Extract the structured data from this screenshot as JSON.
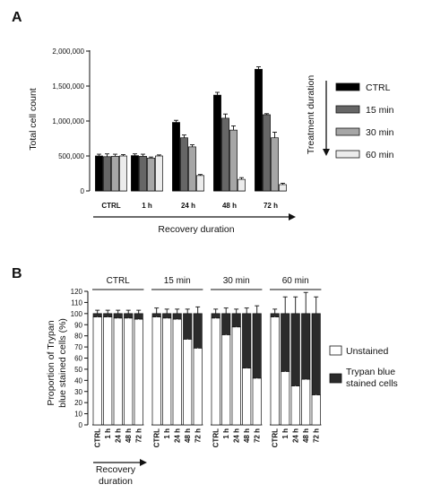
{
  "chart_data": [
    {
      "panel": "A",
      "type": "bar",
      "title": "",
      "ylabel": "Total cell count",
      "xlabel": "Recovery duration",
      "legend_title": "Treatment duration",
      "legend_position": "right",
      "ylim": [
        0,
        2000000
      ],
      "y_ticks": [
        0,
        500000,
        1000000,
        1500000,
        2000000
      ],
      "y_tick_labels": [
        "0",
        "500,000",
        "1,000,000",
        "1,500,000",
        "2,000,000"
      ],
      "categories": [
        "CTRL",
        "1 h",
        "24 h",
        "48 h",
        "72 h"
      ],
      "series": [
        {
          "name": "CTRL",
          "color": "#000000",
          "values": [
            500000,
            505000,
            980000,
            1370000,
            1740000
          ],
          "errors": [
            25000,
            25000,
            30000,
            40000,
            35000
          ]
        },
        {
          "name": "15 min",
          "color": "#666666",
          "values": [
            490000,
            495000,
            760000,
            1040000,
            1090000
          ],
          "errors": [
            40000,
            30000,
            40000,
            60000,
            15000
          ]
        },
        {
          "name": "30 min",
          "color": "#a6a6a6",
          "values": [
            495000,
            470000,
            630000,
            870000,
            760000
          ],
          "errors": [
            30000,
            15000,
            30000,
            60000,
            80000
          ]
        },
        {
          "name": "60 min",
          "color": "#ececec",
          "values": [
            500000,
            500000,
            220000,
            165000,
            90000
          ],
          "errors": [
            20000,
            15000,
            15000,
            25000,
            20000
          ]
        }
      ]
    },
    {
      "panel": "B",
      "type": "bar",
      "stacked": true,
      "title": "",
      "ylabel": "Proportion of Trypan blue stained cells (%)",
      "xlabel": "Recovery duration",
      "legend_position": "right",
      "ylim": [
        0,
        120
      ],
      "y_ticks": [
        0,
        10,
        20,
        30,
        40,
        50,
        60,
        70,
        80,
        90,
        100,
        110,
        120
      ],
      "categories": [
        "CTRL",
        "1 h",
        "24 h",
        "48 h",
        "72 h"
      ],
      "groups": [
        {
          "name": "CTRL",
          "unstained": [
            97,
            97,
            96,
            96,
            95
          ],
          "stained": [
            3,
            3,
            4,
            4,
            5
          ],
          "errors": [
            3,
            3,
            3,
            3,
            3
          ]
        },
        {
          "name": "15 min",
          "unstained": [
            97,
            96,
            95,
            77,
            69
          ],
          "stained": [
            3,
            4,
            5,
            23,
            31
          ],
          "errors": [
            5,
            4,
            4,
            4,
            6
          ]
        },
        {
          "name": "30 min",
          "unstained": [
            96,
            81,
            88,
            51,
            42
          ],
          "stained": [
            4,
            19,
            12,
            49,
            58
          ],
          "errors": [
            4,
            5,
            4,
            5,
            7
          ]
        },
        {
          "name": "60 min",
          "unstained": [
            97,
            48,
            35,
            41,
            27
          ],
          "stained": [
            3,
            52,
            65,
            59,
            73
          ],
          "errors": [
            4,
            15,
            15,
            19,
            15
          ]
        }
      ],
      "series_legend": [
        {
          "name": "Unstained",
          "color": "#ffffff"
        },
        {
          "name": "Trypan blue stained cells",
          "color": "#2b2b2b"
        }
      ]
    }
  ],
  "labels": {
    "panel_a": "A",
    "panel_b": "B",
    "ylabel_b_line1": "Proportion of Trypan",
    "ylabel_b_line2": "blue stained cells (%)",
    "legend_b_stained_line1": "Trypan blue",
    "legend_b_stained_line2": "stained cells",
    "xlabel_b_line1": "Recovery",
    "xlabel_b_line2": "duration"
  }
}
